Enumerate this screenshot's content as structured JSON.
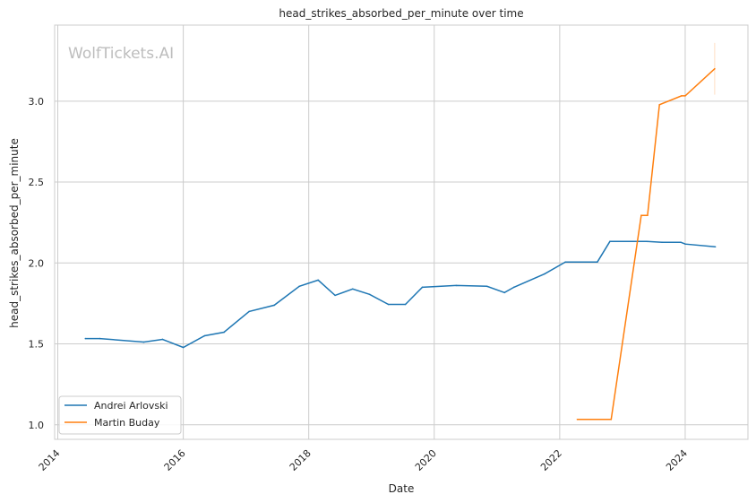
{
  "chart_data": {
    "type": "line",
    "title": "head_strikes_absorbed_per_minute over time",
    "xlabel": "Date",
    "ylabel": "head_strikes_absorbed_per_minute",
    "xlim": [
      2013.95,
      2025.0
    ],
    "ylim": [
      0.91,
      3.47
    ],
    "xticks": [
      2014,
      2016,
      2018,
      2020,
      2022,
      2024
    ],
    "xtick_labels": [
      "2014",
      "2016",
      "2018",
      "2020",
      "2022",
      "2024"
    ],
    "yticks": [
      1.0,
      1.5,
      2.0,
      2.5,
      3.0
    ],
    "ytick_labels": [
      "1.0",
      "1.5",
      "2.0",
      "2.5",
      "3.0"
    ],
    "grid": true,
    "legend_position": "lower-left",
    "watermark": "WolfTickets.AI",
    "series": [
      {
        "name": "Andrei Arlovski",
        "color": "#1f77b4",
        "x": [
          2014.44,
          2014.67,
          2015.37,
          2015.67,
          2016.0,
          2016.34,
          2016.65,
          2017.05,
          2017.45,
          2017.85,
          2018.15,
          2018.42,
          2018.7,
          2018.97,
          2019.27,
          2019.54,
          2019.81,
          2020.35,
          2020.84,
          2021.12,
          2021.27,
          2021.76,
          2022.09,
          2022.6,
          2022.8,
          2023.39,
          2023.63,
          2023.93,
          2024.0,
          2024.48
        ],
        "y": [
          1.533,
          1.533,
          1.511,
          1.528,
          1.478,
          1.55,
          1.572,
          1.7,
          1.739,
          1.856,
          1.894,
          1.8,
          1.839,
          1.806,
          1.744,
          1.744,
          1.85,
          1.861,
          1.856,
          1.817,
          1.85,
          1.933,
          2.006,
          2.006,
          2.133,
          2.133,
          2.128,
          2.128,
          2.117,
          2.1
        ]
      },
      {
        "name": "Martin Buday",
        "color": "#ff7f0e",
        "x": [
          2022.28,
          2022.82,
          2023.3,
          2023.4,
          2023.59,
          2023.94,
          2024.0,
          2024.47
        ],
        "y": [
          1.033,
          1.033,
          2.294,
          2.294,
          2.978,
          3.033,
          3.033,
          3.2
        ],
        "band_at_end": [
          3.04,
          3.36
        ]
      }
    ]
  }
}
